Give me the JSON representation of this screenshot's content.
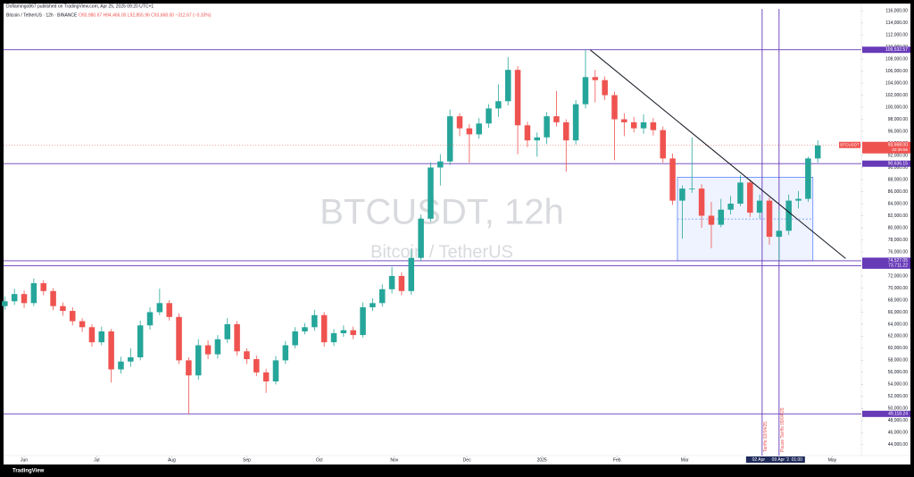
{
  "header": {
    "title": "Doflamingo867 published on TradingView.com, Apr 25, 2025 09:20 UTC+1",
    "symbol": "Bitcoin / TetherUS · 12h · BINANCE",
    "ohlc": "O93,980.67 H94,466.00 L92,855.96 C93,668.00 −312.67 (−0.33%)"
  },
  "footer": {
    "logo": "TradingView"
  },
  "chart_data": {
    "type": "candlestick",
    "watermark": {
      "title": "BTCUSDT, 12h",
      "subtitle": "Bitcoin / TetherUS"
    },
    "up_color": "#26a69a",
    "down_color": "#ef5350",
    "x": [
      -8,
      -4,
      0,
      4,
      8,
      12,
      16,
      20,
      24,
      28,
      32,
      36,
      40,
      44,
      48,
      52,
      56,
      60,
      64,
      68,
      72,
      76,
      80,
      84,
      88,
      92,
      96,
      100,
      104,
      108,
      112,
      116,
      120,
      124,
      128,
      132,
      136,
      140,
      144,
      148,
      152,
      156,
      160,
      164,
      168,
      172,
      176,
      180,
      184,
      188,
      192,
      196,
      200,
      204,
      208,
      212,
      216,
      220,
      224,
      228,
      232,
      236,
      240,
      244,
      248,
      252,
      256,
      260,
      264,
      268,
      272,
      276,
      280,
      284,
      288,
      292,
      296,
      300,
      304,
      308,
      312,
      316,
      320,
      324,
      328
    ],
    "open": [
      67000,
      67800,
      69000,
      67500,
      70800,
      69500,
      67000,
      66200,
      64500,
      63500,
      61000,
      62800,
      56500,
      57800,
      58500,
      63800,
      66000,
      67500,
      65200,
      58000,
      55500,
      60500,
      59000,
      61500,
      64000,
      59500,
      58200,
      56000,
      54500,
      58000,
      60500,
      62800,
      63500,
      65500,
      61000,
      62500,
      63000,
      62200,
      66800,
      67500,
      69800,
      72000,
      69500,
      75000,
      81500,
      90000,
      91000,
      98500,
      96500,
      95500,
      97300,
      99800,
      101000,
      106200,
      97000,
      94500,
      95000,
      98500,
      97500,
      94500,
      100500,
      105000,
      104500,
      102000,
      98000,
      97500,
      96500,
      97500,
      96200,
      91500,
      84500,
      86500,
      86500,
      82000,
      80500,
      83000,
      84000,
      87500,
      82500,
      84500,
      78500,
      79500,
      84500,
      84800,
      91500
    ],
    "high": [
      68600,
      69900,
      69600,
      71600,
      71300,
      70000,
      67600,
      66800,
      65000,
      64000,
      63600,
      63200,
      58600,
      60000,
      64600,
      66800,
      69900,
      68000,
      65800,
      58500,
      61500,
      61300,
      62200,
      65000,
      64500,
      60000,
      58800,
      56600,
      58700,
      61200,
      63500,
      64200,
      66400,
      66000,
      63200,
      63800,
      63600,
      67600,
      68300,
      70600,
      73500,
      72600,
      76500,
      82200,
      90800,
      92200,
      99600,
      99000,
      97200,
      98200,
      100500,
      103800,
      108300,
      106800,
      97600,
      95800,
      99200,
      102700,
      98000,
      101200,
      109500,
      106200,
      105100,
      102600,
      99000,
      98400,
      98800,
      98200,
      96800,
      92300,
      87000,
      95000,
      87200,
      84300,
      84800,
      85300,
      88700,
      88000,
      85500,
      85000,
      83000,
      85500,
      86100,
      91800,
      94500
    ],
    "low": [
      66400,
      67200,
      66700,
      67000,
      68800,
      66300,
      65400,
      63800,
      62700,
      60300,
      60500,
      54300,
      55800,
      56900,
      58000,
      63100,
      65500,
      64600,
      57400,
      49100,
      54800,
      58200,
      58300,
      60900,
      58800,
      57400,
      55400,
      52600,
      54000,
      57400,
      60000,
      62300,
      62900,
      60300,
      60400,
      61900,
      61500,
      61800,
      66200,
      66900,
      69100,
      68800,
      68900,
      74500,
      81000,
      87000,
      90400,
      95200,
      90800,
      94800,
      96600,
      98400,
      100300,
      92200,
      93400,
      91800,
      93900,
      96800,
      89300,
      93800,
      99800,
      100800,
      101200,
      91200,
      95200,
      95800,
      95600,
      95300,
      90800,
      83800,
      78200,
      85800,
      80000,
      76600,
      80100,
      82200,
      83600,
      81800,
      81500,
      77200,
      74500,
      78800,
      83200,
      84300,
      90800
    ],
    "close": [
      67800,
      69000,
      67500,
      70800,
      69500,
      67000,
      66200,
      64500,
      63500,
      61000,
      62800,
      56500,
      57800,
      58500,
      63800,
      66000,
      67500,
      65200,
      58000,
      55500,
      60500,
      59000,
      61500,
      64000,
      59500,
      58200,
      56000,
      54500,
      58000,
      60500,
      62800,
      63500,
      65500,
      61000,
      62500,
      63000,
      62200,
      66800,
      67500,
      69800,
      72000,
      69500,
      75000,
      81500,
      90000,
      91000,
      98500,
      96500,
      95500,
      97300,
      99800,
      101000,
      106200,
      97000,
      94500,
      95000,
      98500,
      97500,
      94500,
      100500,
      105000,
      104500,
      102000,
      98000,
      97500,
      96500,
      97500,
      96200,
      91500,
      84500,
      86500,
      86500,
      82000,
      80500,
      83000,
      84000,
      87500,
      82500,
      84500,
      78500,
      79500,
      84500,
      84800,
      91500,
      93668
    ],
    "xlim": [
      -8.5,
      346
    ],
    "ylim": [
      42200,
      117200
    ],
    "xticks": [
      {
        "value": 0,
        "label": "Jun"
      },
      {
        "value": 30,
        "label": "Jul"
      },
      {
        "value": 61,
        "label": "Aug"
      },
      {
        "value": 92,
        "label": "Sep"
      },
      {
        "value": 122,
        "label": "Oct"
      },
      {
        "value": 153,
        "label": "Nov"
      },
      {
        "value": 183,
        "label": "Dec"
      },
      {
        "value": 214,
        "label": "2025"
      },
      {
        "value": 245,
        "label": "Feb"
      },
      {
        "value": 273,
        "label": "Mar"
      },
      {
        "value": 334,
        "label": "May"
      }
    ],
    "yticks": [
      {
        "value": 44000,
        "label": "44,000.00"
      },
      {
        "value": 46000,
        "label": "46,000.00"
      },
      {
        "value": 48000,
        "label": "48,000.00"
      },
      {
        "value": 50000,
        "label": "50,000.00"
      },
      {
        "value": 52000,
        "label": "52,000.00"
      },
      {
        "value": 54000,
        "label": "54,000.00"
      },
      {
        "value": 56000,
        "label": "56,000.00"
      },
      {
        "value": 58000,
        "label": "58,000.00"
      },
      {
        "value": 60000,
        "label": "60,000.00"
      },
      {
        "value": 62000,
        "label": "62,000.00"
      },
      {
        "value": 64000,
        "label": "64,000.00"
      },
      {
        "value": 66000,
        "label": "66,000.00"
      },
      {
        "value": 68000,
        "label": "68,000.00"
      },
      {
        "value": 70000,
        "label": "70,000.00"
      },
      {
        "value": 72000,
        "label": "72,000.00"
      },
      {
        "value": 74000,
        "label": "74,000.00"
      },
      {
        "value": 76000,
        "label": "76,000.00"
      },
      {
        "value": 78000,
        "label": "78,000.00"
      },
      {
        "value": 80000,
        "label": "80,000.00"
      },
      {
        "value": 82000,
        "label": "82,000.00"
      },
      {
        "value": 84000,
        "label": "84,000.00"
      },
      {
        "value": 86000,
        "label": "86,000.00"
      },
      {
        "value": 88000,
        "label": "88,000.00"
      },
      {
        "value": 90000,
        "label": "90,000.00"
      },
      {
        "value": 92000,
        "label": "92,000.00"
      },
      {
        "value": 94000,
        "label": "94,000.00"
      },
      {
        "value": 96000,
        "label": "96,000.00"
      },
      {
        "value": 98000,
        "label": "98,000.00"
      },
      {
        "value": 100000,
        "label": "100,000.00"
      },
      {
        "value": 102000,
        "label": "102,000.00"
      },
      {
        "value": 104000,
        "label": "104,000.00"
      },
      {
        "value": 106000,
        "label": "106,000.00"
      },
      {
        "value": 108000,
        "label": "108,000.00"
      },
      {
        "value": 110000,
        "label": "110,000.00"
      },
      {
        "value": 112000,
        "label": "112,000.00"
      },
      {
        "value": 114000,
        "label": "114,000.00"
      },
      {
        "value": 116000,
        "label": "116,000.00"
      }
    ],
    "levels": [
      {
        "value": 109532.57,
        "label": "109,532.57"
      },
      {
        "value": 90636.15,
        "label": "90,636.15"
      },
      {
        "value": 74527.05,
        "label": "74,527.05"
      },
      {
        "value": 73711.22,
        "label": "73,711.22"
      },
      {
        "value": 49118.24,
        "label": "49,118.24"
      }
    ],
    "level_color": "#673ab7",
    "last_price": {
      "name": "BTCUSDT",
      "value": 93668,
      "label": "93,668.00",
      "countdown": "02:39:56"
    },
    "events": [
      {
        "x": 305,
        "label": "Tariffs 02/04/25",
        "date": "02 Apr"
      },
      {
        "x": 312,
        "label": "Pause Tariffs 09/04/25",
        "date": "09 Apr '25"
      }
    ],
    "time_badge": "01:00",
    "box": {
      "x": [
        270,
        326
      ],
      "y": [
        74527.05,
        88400
      ]
    },
    "trendline": {
      "x": [
        234,
        339.5
      ],
      "y": [
        109500,
        74900
      ]
    }
  }
}
